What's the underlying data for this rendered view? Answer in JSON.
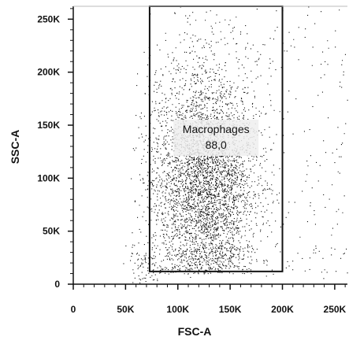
{
  "chart_data": {
    "type": "scatter",
    "xlabel": "FSC-A",
    "ylabel": "SSC-A",
    "xlim": [
      0,
      262144
    ],
    "ylim": [
      0,
      262144
    ],
    "x_ticks": [
      {
        "value": 0,
        "label": "0"
      },
      {
        "value": 50000,
        "label": "50K"
      },
      {
        "value": 100000,
        "label": "100K"
      },
      {
        "value": 150000,
        "label": "150K"
      },
      {
        "value": 200000,
        "label": "200K"
      },
      {
        "value": 250000,
        "label": "250K"
      }
    ],
    "y_ticks": [
      {
        "value": 0,
        "label": "0"
      },
      {
        "value": 50000,
        "label": "50K"
      },
      {
        "value": 100000,
        "label": "100K"
      },
      {
        "value": 150000,
        "label": "150K"
      },
      {
        "value": 200000,
        "label": "200K"
      },
      {
        "value": 250000,
        "label": "250K"
      }
    ],
    "gate": {
      "name": "Macrophages",
      "percent": "88,0",
      "x_range": [
        73000,
        200000
      ],
      "y_range": [
        12000,
        262144
      ]
    },
    "population": {
      "main_center": [
        125000,
        100000
      ],
      "main_spread": [
        25000,
        55000
      ],
      "event_count_shown": 6000
    },
    "grid": false,
    "legend": "none"
  }
}
